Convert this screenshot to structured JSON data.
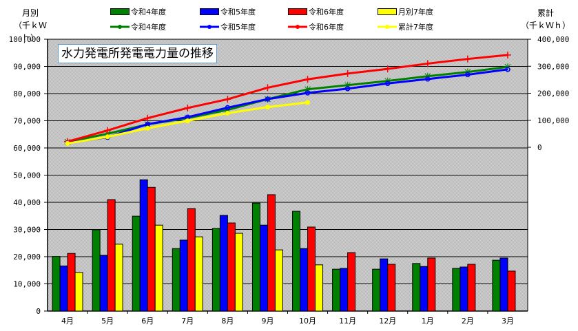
{
  "chart_data": {
    "type": "bar+line",
    "title": "水力発電所発電電力量の推移",
    "left_axis": {
      "title_line1": "月別",
      "title_line2": "（千ｋＷｈ）",
      "min": 0,
      "max": 100000,
      "step": 10000,
      "ticks": [
        "0",
        "10,000",
        "20,000",
        "30,000",
        "40,000",
        "50,000",
        "60,000",
        "70,000",
        "80,000",
        "90,000",
        "100,000"
      ]
    },
    "right_axis": {
      "title_line1": "累計",
      "title_line2": "（千ｋＷｈ）",
      "min": 0,
      "max": 400000,
      "step": 100000,
      "ticks": [
        "0",
        "100,000",
        "200,000",
        "300,000",
        "400,000"
      ]
    },
    "categories": [
      "4月",
      "5月",
      "6月",
      "7月",
      "8月",
      "9月",
      "10月",
      "11月",
      "12月",
      "1月",
      "2月",
      "3月"
    ],
    "bar_series": [
      {
        "name": "令和4年度",
        "color": "#008000",
        "values": [
          20100,
          29900,
          34900,
          23000,
          30400,
          39700,
          36700,
          15400,
          15400,
          17500,
          15700,
          18700
        ]
      },
      {
        "name": "令和5年度",
        "color": "#0000ff",
        "values": [
          16600,
          20500,
          48300,
          26100,
          35200,
          31600,
          23000,
          15700,
          19200,
          16400,
          16200,
          19500
        ]
      },
      {
        "name": "令和6年度",
        "color": "#ff0000",
        "values": [
          21200,
          41000,
          45500,
          37700,
          32400,
          42800,
          30900,
          21500,
          17200,
          19500,
          17200,
          14700
        ]
      },
      {
        "name": "月別7年度",
        "color": "#ffff00",
        "values": [
          14200,
          24600,
          31600,
          27300,
          28600,
          22500,
          17000,
          null,
          null,
          null,
          null,
          null
        ]
      }
    ],
    "line_series": [
      {
        "name": "令和4年度",
        "color": "#008000",
        "marker": "asterisk",
        "values": [
          20100,
          50000,
          84900,
          107900,
          138300,
          178000,
          214700,
          230100,
          245500,
          263000,
          278700,
          297400
        ]
      },
      {
        "name": "令和5年度",
        "color": "#0000ff",
        "marker": "circle",
        "values": [
          16600,
          37100,
          85400,
          111500,
          146700,
          178300,
          201300,
          217000,
          236200,
          252600,
          268800,
          288300
        ]
      },
      {
        "name": "令和6年度",
        "color": "#ff0000",
        "marker": "plus",
        "values": [
          21200,
          62200,
          107700,
          145400,
          177800,
          220600,
          251500,
          273000,
          290200,
          309700,
          326900,
          341600
        ]
      },
      {
        "name": "累計7年度",
        "color": "#ffff00",
        "marker": "dot",
        "values": [
          14200,
          38800,
          70400,
          97700,
          126300,
          148800,
          165800,
          null,
          null,
          null,
          null,
          null
        ]
      }
    ],
    "legend": {
      "position": "top",
      "rows": [
        [
          "令和4年度",
          "令和5年度",
          "令和6年度",
          "月別7年度"
        ],
        [
          "令和4年度",
          "令和5年度",
          "令和6年度",
          "累計7年度"
        ]
      ]
    },
    "grid": true,
    "plot_background": "#c0c0c0"
  }
}
